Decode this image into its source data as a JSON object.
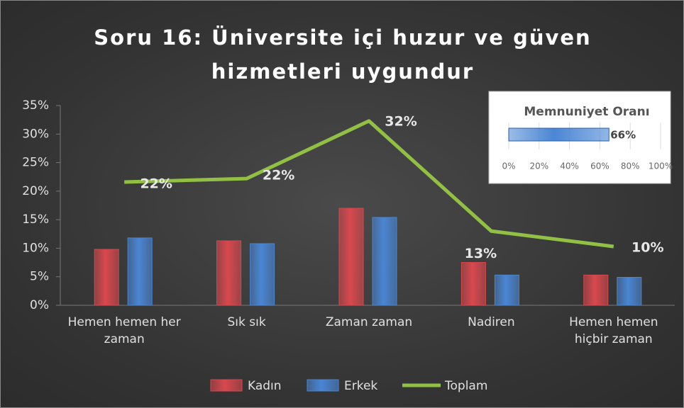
{
  "chart_data": [
    {
      "type": "bar-line",
      "title": "Soru 16: Üniversite içi huzur ve güven hizmetleri uygundur",
      "categories": [
        "Hemen hemen her zaman",
        "Sık sık",
        "Zaman zaman",
        "Nadiren",
        "Hemen hemen hiçbir zaman"
      ],
      "series": [
        {
          "name": "Kadın",
          "type": "bar",
          "color": "#d9484e",
          "values": [
            9.8,
            11.3,
            17,
            7.5,
            5.3
          ]
        },
        {
          "name": "Erkek",
          "type": "bar",
          "color": "#4a86d4",
          "values": [
            11.8,
            10.8,
            15.4,
            5.3,
            4.9
          ]
        },
        {
          "name": "Toplam",
          "type": "line",
          "color": "#92c045",
          "values": [
            21.6,
            22.2,
            32.3,
            13,
            10.3
          ],
          "value_labels": [
            "22%",
            "22%",
            "32%",
            "13%",
            "10%"
          ]
        }
      ],
      "ylim": [
        0,
        35
      ],
      "yticks": [
        {
          "value": 0,
          "label": "0%"
        },
        {
          "value": 5,
          "label": "5%"
        },
        {
          "value": 10,
          "label": "10%"
        },
        {
          "value": 15,
          "label": "15%"
        },
        {
          "value": 20,
          "label": "20%"
        },
        {
          "value": 25,
          "label": "25%"
        },
        {
          "value": 30,
          "label": "30%"
        },
        {
          "value": 35,
          "label": "35%"
        }
      ],
      "legend": "bottom"
    },
    {
      "type": "hbar",
      "title": "Memnuniyet Oranı",
      "values": [
        66
      ],
      "value_labels": [
        "66%"
      ],
      "color": "#4a86d4",
      "xlim": [
        0,
        100
      ],
      "xticks": [
        {
          "value": 0,
          "label": "0%"
        },
        {
          "value": 20,
          "label": "20%"
        },
        {
          "value": 40,
          "label": "40%"
        },
        {
          "value": 60,
          "label": "60%"
        },
        {
          "value": 80,
          "label": "80%"
        },
        {
          "value": 100,
          "label": "100%"
        }
      ],
      "grid": true
    }
  ]
}
